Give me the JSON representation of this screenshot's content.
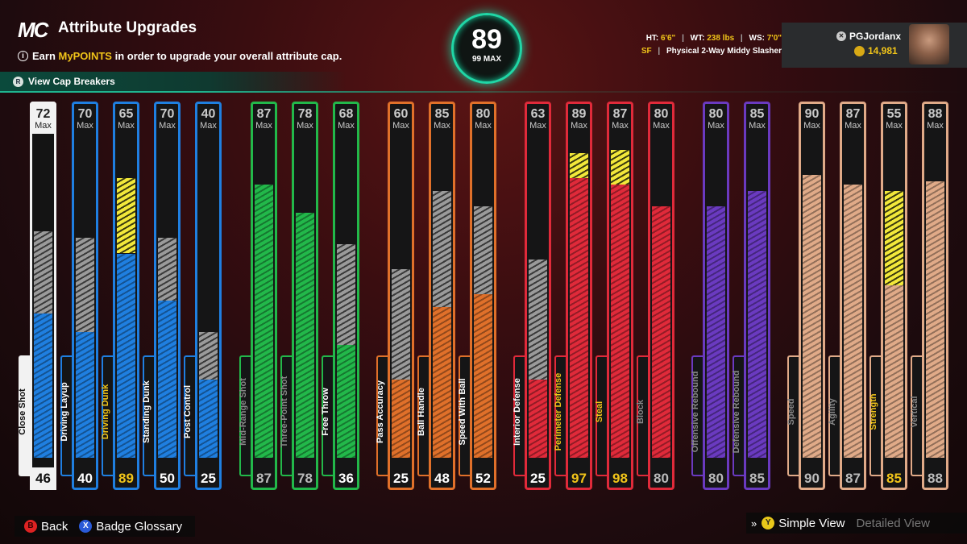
{
  "header": {
    "logo": "MC",
    "title": "Attribute Upgrades",
    "info_prefix": "Earn ",
    "info_highlight": "MyPOINTS",
    "info_suffix": " in order to upgrade your overall attribute cap.",
    "cap_breakers_label": "View Cap Breakers"
  },
  "overall": {
    "value": "89",
    "max_label": "99 MAX"
  },
  "player": {
    "ht_label": "HT:",
    "ht": "6'6\"",
    "wt_label": "WT:",
    "wt": "238 lbs",
    "ws_label": "WS:",
    "ws": "7'0\"",
    "position": "SF",
    "archetype": "Physical 2-Way Middy Slasher",
    "gamertag": "PGJordanx",
    "vc": "14,981"
  },
  "colors": {
    "finishing": "#1f7fe0",
    "shooting": "#22b84a",
    "playmaking": "#e0702a",
    "defense": "#e02a3a",
    "rebound": "#6a3ac0",
    "physical": "#e0aa88",
    "overall_ring": "#20d6a6",
    "highlight": "#f0c419"
  },
  "max_word": "Max",
  "attributes": [
    {
      "name": "Close Shot",
      "group": "finishing",
      "max": "72",
      "current": "46",
      "fill": 46,
      "grey_to": 72,
      "boost_to": null,
      "selected": true
    },
    {
      "name": "Driving Layup",
      "group": "finishing",
      "max": "70",
      "current": "40",
      "fill": 40,
      "grey_to": 70,
      "boost_to": null
    },
    {
      "name": "Driving Dunk",
      "group": "finishing",
      "max": "65",
      "current": "89",
      "fill": 65,
      "grey_to": 65,
      "boost_to": 89,
      "highlight": true
    },
    {
      "name": "Standing Dunk",
      "group": "finishing",
      "max": "70",
      "current": "50",
      "fill": 50,
      "grey_to": 70,
      "boost_to": null
    },
    {
      "name": "Post Control",
      "group": "finishing",
      "max": "40",
      "current": "25",
      "fill": 25,
      "grey_to": 40,
      "boost_to": null
    },
    {
      "name": "Mid-Range Shot",
      "group": "shooting",
      "max": "87",
      "current": "87",
      "fill": 87,
      "grey_to": 87,
      "boost_to": null,
      "dim": true
    },
    {
      "name": "Three-Point Shot",
      "group": "shooting",
      "max": "78",
      "current": "78",
      "fill": 78,
      "grey_to": 78,
      "boost_to": null,
      "dim": true
    },
    {
      "name": "Free Throw",
      "group": "shooting",
      "max": "68",
      "current": "36",
      "fill": 36,
      "grey_to": 68,
      "boost_to": null
    },
    {
      "name": "Pass Accuracy",
      "group": "playmaking",
      "max": "60",
      "current": "25",
      "fill": 25,
      "grey_to": 60,
      "boost_to": null
    },
    {
      "name": "Ball Handle",
      "group": "playmaking",
      "max": "85",
      "current": "48",
      "fill": 48,
      "grey_to": 85,
      "boost_to": null
    },
    {
      "name": "Speed With Ball",
      "group": "playmaking",
      "max": "80",
      "current": "52",
      "fill": 52,
      "grey_to": 80,
      "boost_to": null
    },
    {
      "name": "Interior Defense",
      "group": "defense",
      "max": "63",
      "current": "25",
      "fill": 25,
      "grey_to": 63,
      "boost_to": null
    },
    {
      "name": "Perimeter Defense",
      "group": "defense",
      "max": "89",
      "current": "97",
      "fill": 89,
      "grey_to": 89,
      "boost_to": 97,
      "highlight": true
    },
    {
      "name": "Steal",
      "group": "defense",
      "max": "87",
      "current": "98",
      "fill": 87,
      "grey_to": 87,
      "boost_to": 98,
      "highlight": true
    },
    {
      "name": "Block",
      "group": "defense",
      "max": "80",
      "current": "80",
      "fill": 80,
      "grey_to": 80,
      "boost_to": null,
      "dim": true
    },
    {
      "name": "Offensive Rebound",
      "group": "rebound",
      "max": "80",
      "current": "80",
      "fill": 80,
      "grey_to": 80,
      "boost_to": null,
      "dim": true
    },
    {
      "name": "Defensive Rebound",
      "group": "rebound",
      "max": "85",
      "current": "85",
      "fill": 85,
      "grey_to": 85,
      "boost_to": null,
      "dim": true
    },
    {
      "name": "Speed",
      "group": "physical",
      "max": "90",
      "current": "90",
      "fill": 90,
      "grey_to": 90,
      "boost_to": null,
      "dim": true
    },
    {
      "name": "Agility",
      "group": "physical",
      "max": "87",
      "current": "87",
      "fill": 87,
      "grey_to": 87,
      "boost_to": null,
      "dim": true
    },
    {
      "name": "Strength",
      "group": "physical",
      "max": "55",
      "current": "85",
      "fill": 55,
      "grey_to": 55,
      "boost_to": 85,
      "highlight": true
    },
    {
      "name": "Vertical",
      "group": "physical",
      "max": "88",
      "current": "88",
      "fill": 88,
      "grey_to": 88,
      "boost_to": null,
      "dim": true
    }
  ],
  "footer": {
    "back_key": "B",
    "back_label": "Back",
    "glossary_key": "X",
    "glossary_label": "Badge Glossary",
    "view_key": "Y",
    "simple_view": "Simple View",
    "detailed_view": "Detailed View"
  }
}
